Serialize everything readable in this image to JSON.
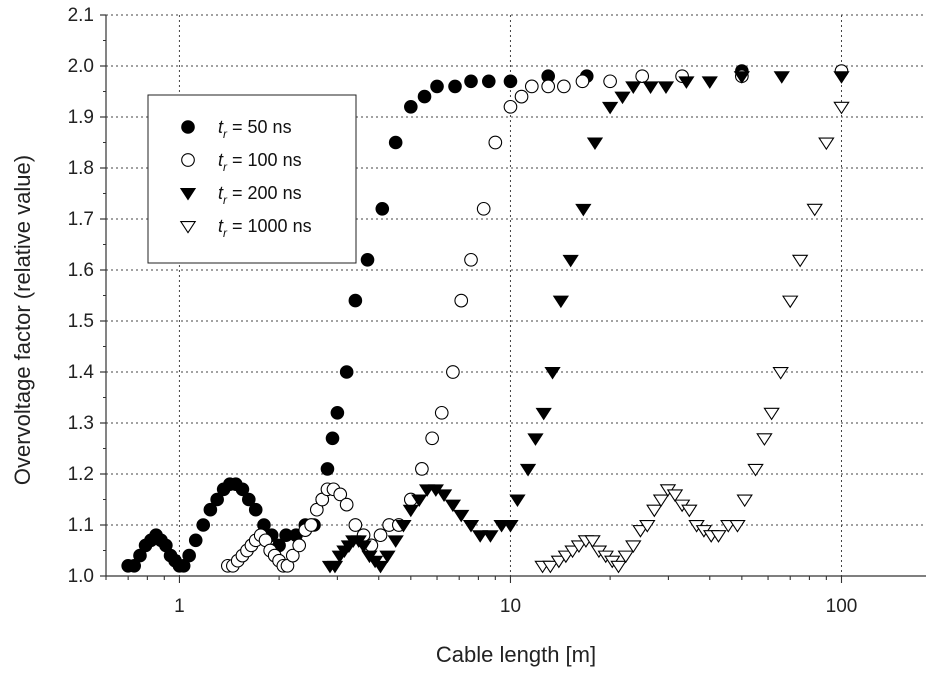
{
  "chart_data": {
    "type": "scatter",
    "title": "",
    "xlabel": "Cable length  [m]",
    "ylabel": "Overvoltage factor (relative value)",
    "xscale": "log",
    "xlim": [
      0.6,
      180
    ],
    "ylim": [
      1.0,
      2.1
    ],
    "grid": true,
    "legend_position": "top-left",
    "x_ticks": [
      {
        "value": 1,
        "label": "1"
      },
      {
        "value": 10,
        "label": "10"
      },
      {
        "value": 100,
        "label": "100"
      }
    ],
    "y_ticks": [
      {
        "value": 1.0,
        "label": "1.0"
      },
      {
        "value": 1.1,
        "label": "1.1"
      },
      {
        "value": 1.2,
        "label": "1.2"
      },
      {
        "value": 1.3,
        "label": "1.3"
      },
      {
        "value": 1.4,
        "label": "1.4"
      },
      {
        "value": 1.5,
        "label": "1.5"
      },
      {
        "value": 1.6,
        "label": "1.6"
      },
      {
        "value": 1.7,
        "label": "1.7"
      },
      {
        "value": 1.8,
        "label": "1.8"
      },
      {
        "value": 1.9,
        "label": "1.9"
      },
      {
        "value": 2.0,
        "label": "2.0"
      },
      {
        "value": 2.1,
        "label": "2.1"
      }
    ],
    "series": [
      {
        "name": "= 50 ns",
        "symbol_prefix": "t",
        "symbol_sub": "r",
        "marker": "filled-circle",
        "points": [
          [
            0.7,
            1.02
          ],
          [
            0.73,
            1.02
          ],
          [
            0.76,
            1.04
          ],
          [
            0.79,
            1.06
          ],
          [
            0.82,
            1.07
          ],
          [
            0.85,
            1.08
          ],
          [
            0.88,
            1.07
          ],
          [
            0.91,
            1.06
          ],
          [
            0.94,
            1.04
          ],
          [
            0.97,
            1.03
          ],
          [
            1.0,
            1.02
          ],
          [
            1.03,
            1.02
          ],
          [
            1.07,
            1.04
          ],
          [
            1.12,
            1.07
          ],
          [
            1.18,
            1.1
          ],
          [
            1.24,
            1.13
          ],
          [
            1.3,
            1.15
          ],
          [
            1.36,
            1.17
          ],
          [
            1.42,
            1.18
          ],
          [
            1.48,
            1.18
          ],
          [
            1.55,
            1.17
          ],
          [
            1.62,
            1.15
          ],
          [
            1.7,
            1.13
          ],
          [
            1.8,
            1.1
          ],
          [
            1.9,
            1.08
          ],
          [
            2.0,
            1.06
          ],
          [
            2.1,
            1.08
          ],
          [
            2.25,
            1.08
          ],
          [
            2.4,
            1.1
          ],
          [
            2.55,
            1.1
          ],
          [
            2.7,
            1.15
          ],
          [
            2.8,
            1.21
          ],
          [
            2.9,
            1.27
          ],
          [
            3.0,
            1.32
          ],
          [
            3.2,
            1.4
          ],
          [
            3.4,
            1.54
          ],
          [
            3.7,
            1.62
          ],
          [
            4.1,
            1.72
          ],
          [
            4.5,
            1.85
          ],
          [
            5.0,
            1.92
          ],
          [
            5.5,
            1.94
          ],
          [
            6.0,
            1.96
          ],
          [
            6.8,
            1.96
          ],
          [
            7.6,
            1.97
          ],
          [
            8.6,
            1.97
          ],
          [
            10.0,
            1.97
          ],
          [
            13.0,
            1.98
          ],
          [
            17.0,
            1.98
          ],
          [
            50.0,
            1.99
          ]
        ]
      },
      {
        "name": "= 100 ns",
        "symbol_prefix": "t",
        "symbol_sub": "r",
        "marker": "open-circle",
        "points": [
          [
            1.4,
            1.02
          ],
          [
            1.45,
            1.02
          ],
          [
            1.5,
            1.03
          ],
          [
            1.55,
            1.04
          ],
          [
            1.6,
            1.05
          ],
          [
            1.65,
            1.06
          ],
          [
            1.7,
            1.07
          ],
          [
            1.76,
            1.08
          ],
          [
            1.82,
            1.07
          ],
          [
            1.88,
            1.05
          ],
          [
            1.94,
            1.04
          ],
          [
            2.0,
            1.03
          ],
          [
            2.06,
            1.02
          ],
          [
            2.12,
            1.02
          ],
          [
            2.2,
            1.04
          ],
          [
            2.3,
            1.06
          ],
          [
            2.4,
            1.09
          ],
          [
            2.5,
            1.1
          ],
          [
            2.6,
            1.13
          ],
          [
            2.7,
            1.15
          ],
          [
            2.8,
            1.17
          ],
          [
            2.92,
            1.17
          ],
          [
            3.06,
            1.16
          ],
          [
            3.2,
            1.14
          ],
          [
            3.4,
            1.1
          ],
          [
            3.6,
            1.08
          ],
          [
            3.8,
            1.06
          ],
          [
            4.05,
            1.08
          ],
          [
            4.3,
            1.1
          ],
          [
            4.6,
            1.1
          ],
          [
            5.0,
            1.15
          ],
          [
            5.4,
            1.21
          ],
          [
            5.8,
            1.27
          ],
          [
            6.2,
            1.32
          ],
          [
            6.7,
            1.4
          ],
          [
            7.1,
            1.54
          ],
          [
            7.6,
            1.62
          ],
          [
            8.3,
            1.72
          ],
          [
            9.0,
            1.85
          ],
          [
            10.0,
            1.92
          ],
          [
            10.8,
            1.94
          ],
          [
            11.6,
            1.96
          ],
          [
            13.0,
            1.96
          ],
          [
            14.5,
            1.96
          ],
          [
            16.5,
            1.97
          ],
          [
            20.0,
            1.97
          ],
          [
            25.0,
            1.98
          ],
          [
            33.0,
            1.98
          ],
          [
            50.0,
            1.98
          ],
          [
            100.0,
            1.99
          ]
        ]
      },
      {
        "name": "= 200 ns",
        "symbol_prefix": "t",
        "symbol_sub": "r",
        "marker": "filled-triangle-down",
        "points": [
          [
            2.85,
            1.02
          ],
          [
            2.95,
            1.02
          ],
          [
            3.05,
            1.04
          ],
          [
            3.15,
            1.05
          ],
          [
            3.25,
            1.06
          ],
          [
            3.35,
            1.07
          ],
          [
            3.48,
            1.07
          ],
          [
            3.6,
            1.06
          ],
          [
            3.75,
            1.04
          ],
          [
            3.9,
            1.03
          ],
          [
            4.05,
            1.02
          ],
          [
            4.25,
            1.04
          ],
          [
            4.5,
            1.07
          ],
          [
            4.75,
            1.1
          ],
          [
            5.0,
            1.13
          ],
          [
            5.3,
            1.15
          ],
          [
            5.6,
            1.17
          ],
          [
            5.95,
            1.17
          ],
          [
            6.3,
            1.16
          ],
          [
            6.7,
            1.14
          ],
          [
            7.1,
            1.12
          ],
          [
            7.6,
            1.1
          ],
          [
            8.1,
            1.08
          ],
          [
            8.7,
            1.08
          ],
          [
            9.4,
            1.1
          ],
          [
            10.0,
            1.1
          ],
          [
            10.5,
            1.15
          ],
          [
            11.3,
            1.21
          ],
          [
            11.9,
            1.27
          ],
          [
            12.6,
            1.32
          ],
          [
            13.4,
            1.4
          ],
          [
            14.2,
            1.54
          ],
          [
            15.2,
            1.62
          ],
          [
            16.6,
            1.72
          ],
          [
            18.0,
            1.85
          ],
          [
            20.0,
            1.92
          ],
          [
            21.8,
            1.94
          ],
          [
            23.5,
            1.96
          ],
          [
            26.5,
            1.96
          ],
          [
            29.5,
            1.96
          ],
          [
            34.0,
            1.97
          ],
          [
            40.0,
            1.97
          ],
          [
            50.0,
            1.98
          ],
          [
            66.0,
            1.98
          ],
          [
            100.0,
            1.98
          ]
        ]
      },
      {
        "name": "= 1000 ns",
        "symbol_prefix": "t",
        "symbol_sub": "r",
        "marker": "open-triangle-down",
        "points": [
          [
            12.5,
            1.02
          ],
          [
            13.2,
            1.02
          ],
          [
            14.0,
            1.03
          ],
          [
            14.7,
            1.04
          ],
          [
            15.4,
            1.05
          ],
          [
            16.1,
            1.06
          ],
          [
            16.9,
            1.07
          ],
          [
            17.7,
            1.07
          ],
          [
            18.5,
            1.05
          ],
          [
            19.4,
            1.04
          ],
          [
            20.3,
            1.03
          ],
          [
            21.2,
            1.02
          ],
          [
            22.3,
            1.04
          ],
          [
            23.5,
            1.06
          ],
          [
            24.7,
            1.09
          ],
          [
            25.9,
            1.1
          ],
          [
            27.2,
            1.13
          ],
          [
            28.5,
            1.15
          ],
          [
            29.9,
            1.17
          ],
          [
            31.4,
            1.16
          ],
          [
            33.0,
            1.14
          ],
          [
            34.7,
            1.13
          ],
          [
            36.5,
            1.1
          ],
          [
            38.4,
            1.09
          ],
          [
            40.4,
            1.08
          ],
          [
            42.5,
            1.08
          ],
          [
            45.5,
            1.1
          ],
          [
            48.5,
            1.1
          ],
          [
            51.0,
            1.15
          ],
          [
            55.0,
            1.21
          ],
          [
            58.5,
            1.27
          ],
          [
            61.5,
            1.32
          ],
          [
            65.5,
            1.4
          ],
          [
            70.0,
            1.54
          ],
          [
            75.0,
            1.62
          ],
          [
            83.0,
            1.72
          ],
          [
            90.0,
            1.85
          ],
          [
            100.0,
            1.92
          ]
        ]
      }
    ]
  }
}
